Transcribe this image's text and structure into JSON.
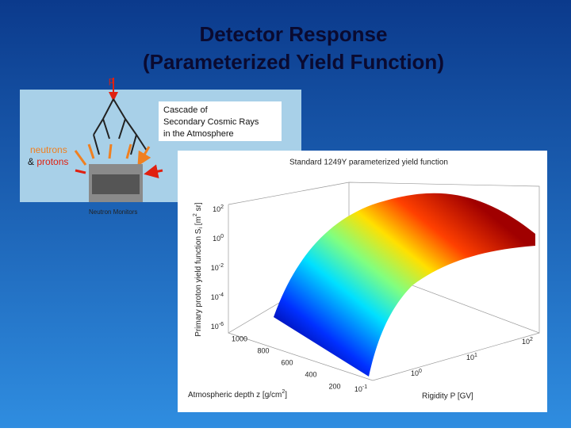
{
  "title": {
    "line1": "Detector Response",
    "line2": "(Parameterized Yield Function)"
  },
  "diagram": {
    "primary": "p",
    "cascade": [
      "Cascade of",
      "Secondary Cosmic Rays",
      "in the Atmosphere"
    ],
    "particles": {
      "neutrons": "neutrons",
      "and": "&",
      "protons": "protons"
    },
    "monitor": "Neutron Monitors"
  },
  "plot": {
    "title": "Standard 1249Y parameterized yield function",
    "y_label": {
      "text": "Primary proton yield function S",
      "sub": "i",
      "unit": "[m",
      "unit_exp": "2",
      "unit_end": " sr]"
    },
    "x_label": {
      "text": "Atmospheric depth z [g/cm",
      "exp": "2",
      "end": "]"
    },
    "r_label": "Rigidity P [GV]",
    "y_ticks": [
      {
        "base": "10",
        "exp": "2"
      },
      {
        "base": "10",
        "exp": "0"
      },
      {
        "base": "10",
        "exp": "-2"
      },
      {
        "base": "10",
        "exp": "-4"
      },
      {
        "base": "10",
        "exp": "-6"
      }
    ],
    "depth_ticks": [
      "1000",
      "800",
      "600",
      "400",
      "200"
    ],
    "rigidity_ticks": [
      {
        "base": "10",
        "exp": "-1"
      },
      {
        "base": "10",
        "exp": "0"
      },
      {
        "base": "10",
        "exp": "1"
      },
      {
        "base": "10",
        "exp": "2"
      }
    ]
  }
}
